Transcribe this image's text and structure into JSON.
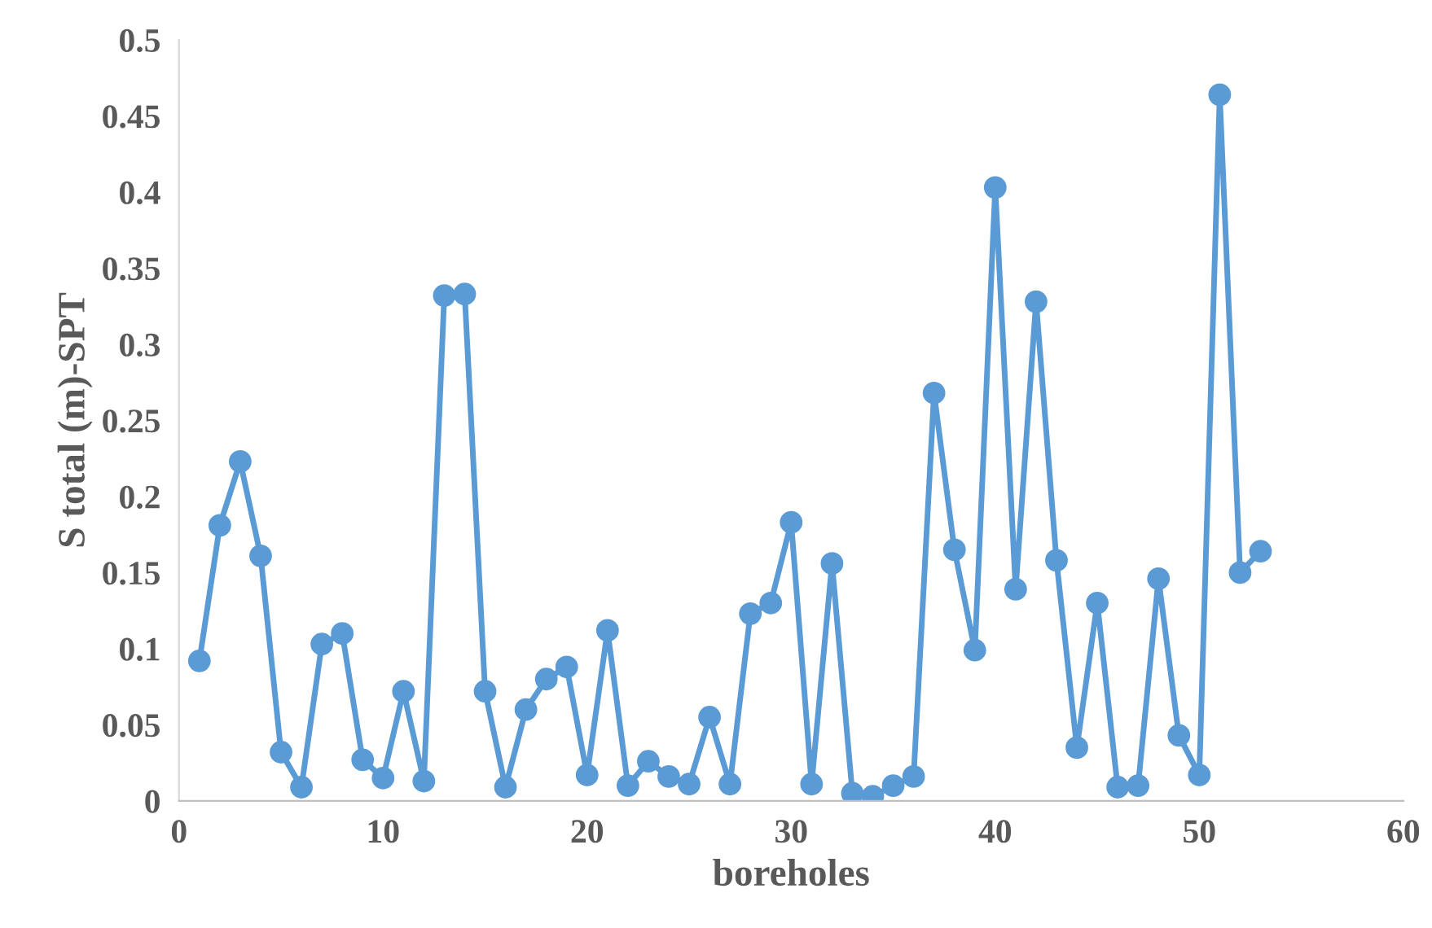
{
  "chart_data": {
    "type": "line",
    "xlabel": "boreholes",
    "ylabel": "S total (m)-SPT",
    "x": [
      1,
      2,
      3,
      4,
      5,
      6,
      7,
      8,
      9,
      10,
      11,
      12,
      13,
      14,
      15,
      16,
      17,
      18,
      19,
      20,
      21,
      22,
      23,
      24,
      25,
      26,
      27,
      28,
      29,
      30,
      31,
      32,
      33,
      34,
      35,
      36,
      37,
      38,
      39,
      40,
      41,
      42,
      43,
      44,
      45,
      46,
      47,
      48,
      49,
      50,
      51,
      52,
      53
    ],
    "series": [
      {
        "color": "#5b9bd5",
        "values": [
          0.092,
          0.181,
          0.223,
          0.161,
          0.032,
          0.009,
          0.103,
          0.11,
          0.027,
          0.015,
          0.072,
          0.013,
          0.332,
          0.333,
          0.072,
          0.009,
          0.06,
          0.08,
          0.088,
          0.017,
          0.112,
          0.01,
          0.026,
          0.016,
          0.011,
          0.055,
          0.011,
          0.123,
          0.13,
          0.183,
          0.011,
          0.156,
          0.005,
          0.003,
          0.01,
          0.016,
          0.268,
          0.165,
          0.099,
          0.403,
          0.139,
          0.328,
          0.158,
          0.035,
          0.13,
          0.009,
          0.01,
          0.146,
          0.043,
          0.017,
          0.464,
          0.15,
          0.164
        ]
      }
    ],
    "xlim": [
      0,
      60
    ],
    "xticks": [
      0,
      10,
      20,
      30,
      40,
      50,
      60
    ],
    "ylim": [
      0,
      0.5
    ],
    "yticks": [
      0,
      0.05,
      0.1,
      0.15,
      0.2,
      0.25,
      0.3,
      0.35,
      0.4,
      0.45,
      0.5
    ],
    "marker": "circle",
    "line_style": "solid",
    "grid": false
  }
}
